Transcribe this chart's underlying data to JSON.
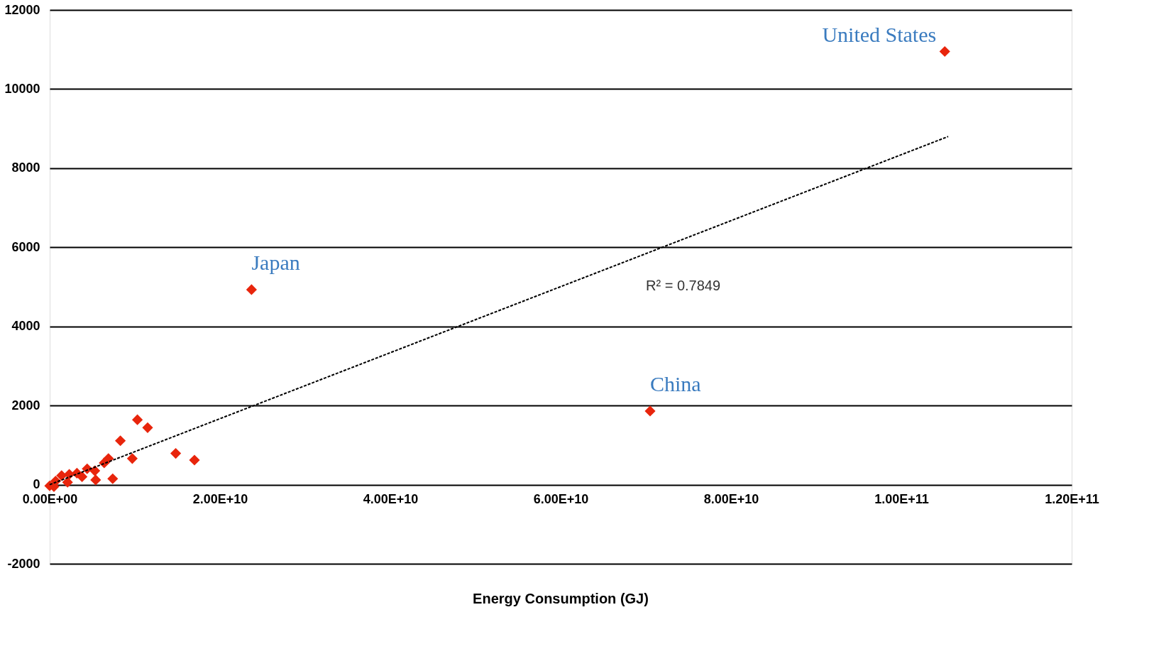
{
  "chart_data": {
    "type": "scatter",
    "xlabel": "Energy Consumption (GJ)",
    "marker": "diamond",
    "grid": "y",
    "xlim": [
      0,
      120000000000
    ],
    "ylim": [
      -2000,
      12000
    ],
    "xticks": [
      {
        "value": 0,
        "label": "0.00E+00"
      },
      {
        "value": 20000000000,
        "label": "2.00E+10"
      },
      {
        "value": 40000000000,
        "label": "4.00E+10"
      },
      {
        "value": 60000000000,
        "label": "6.00E+10"
      },
      {
        "value": 80000000000,
        "label": "8.00E+10"
      },
      {
        "value": 100000000000,
        "label": "1.00E+11"
      },
      {
        "value": 120000000000,
        "label": "1.20E+11"
      }
    ],
    "yticks": [
      -2000,
      0,
      2000,
      4000,
      6000,
      8000,
      10000,
      12000
    ],
    "series": [
      {
        "color": "#e8250c",
        "x": [
          105100000000,
          23700000000,
          70500000000,
          10300000000,
          11500000000,
          8300000000,
          9700000000,
          14800000000,
          17000000000,
          7400000000,
          0,
          700000000,
          1400000000,
          2300000000,
          3200000000,
          4400000000,
          5300000000,
          6900000000,
          6400000000,
          5400000000,
          3800000000,
          2100000000,
          500000000
        ],
        "values": [
          10950,
          4930,
          1860,
          1640,
          1440,
          1110,
          660,
          790,
          620,
          150,
          -30,
          90,
          230,
          260,
          290,
          400,
          350,
          660,
          550,
          120,
          200,
          60,
          -50
        ]
      },
      {
        "type": "line",
        "color": "#000000",
        "marker": "none",
        "line_style": "dashed",
        "x": [
          0,
          105500000000
        ],
        "values": [
          0,
          8800
        ]
      }
    ],
    "annotations": [
      {
        "text": "United States",
        "x": 105100000000,
        "y": 10950
      },
      {
        "text": "Japan",
        "x": 23700000000,
        "y": 4930
      },
      {
        "text": "China",
        "x": 70500000000,
        "y": 1860
      },
      {
        "text": "R² = 0.7849",
        "x": 70000000000,
        "y": 5840
      }
    ]
  }
}
